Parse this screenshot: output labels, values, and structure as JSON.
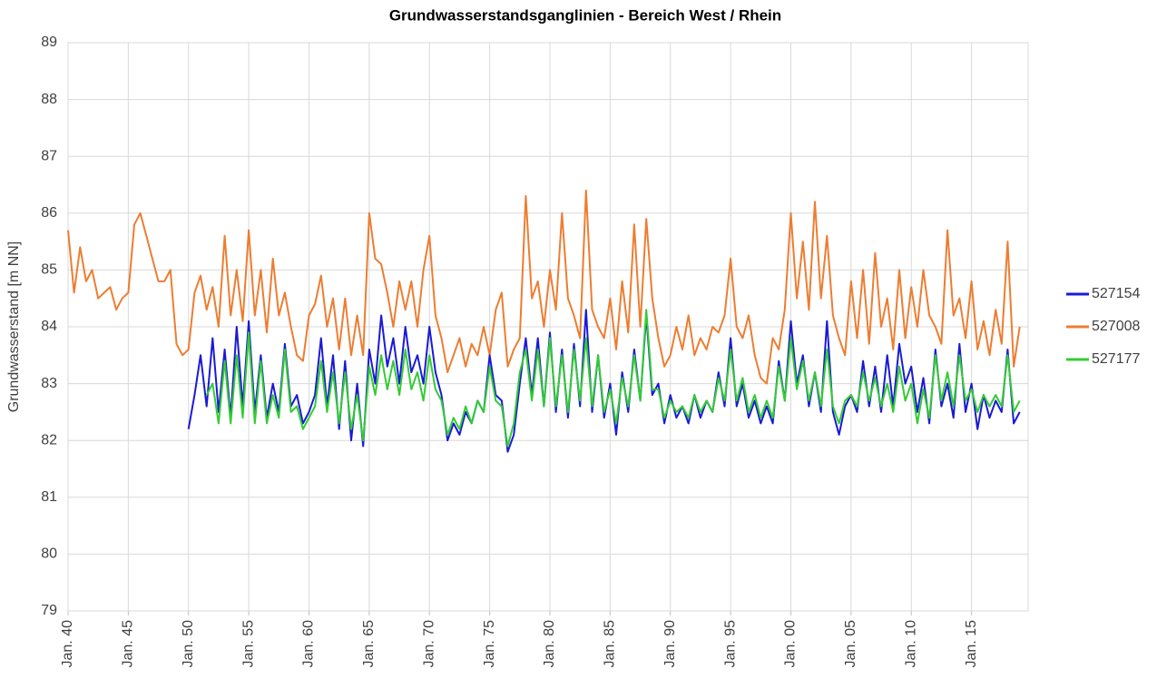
{
  "chart_data": {
    "type": "line",
    "title": "Grundwasserstandsganglinien  - Bereich West / Rhein",
    "y_label": "Grundwasserstand [m NN]",
    "x": [
      1940,
      1940.5,
      1941,
      1941.5,
      1942,
      1942.5,
      1943,
      1943.5,
      1944,
      1944.5,
      1945,
      1945.5,
      1946,
      1946.5,
      1947,
      1947.5,
      1948,
      1948.5,
      1949,
      1949.5,
      1950,
      1950.5,
      1951,
      1951.5,
      1952,
      1952.5,
      1953,
      1953.5,
      1954,
      1954.5,
      1955,
      1955.5,
      1956,
      1956.5,
      1957,
      1957.5,
      1958,
      1958.5,
      1959,
      1959.5,
      1960,
      1960.5,
      1961,
      1961.5,
      1962,
      1962.5,
      1963,
      1963.5,
      1964,
      1964.5,
      1965,
      1965.5,
      1966,
      1966.5,
      1967,
      1967.5,
      1968,
      1968.5,
      1969,
      1969.5,
      1970,
      1970.5,
      1971,
      1971.5,
      1972,
      1972.5,
      1973,
      1973.5,
      1974,
      1974.5,
      1975,
      1975.5,
      1976,
      1976.5,
      1977,
      1977.5,
      1978,
      1978.5,
      1979,
      1979.5,
      1980,
      1980.5,
      1981,
      1981.5,
      1982,
      1982.5,
      1983,
      1983.5,
      1984,
      1984.5,
      1985,
      1985.5,
      1986,
      1986.5,
      1987,
      1987.5,
      1988,
      1988.5,
      1989,
      1989.5,
      1990,
      1990.5,
      1991,
      1991.5,
      1992,
      1992.5,
      1993,
      1993.5,
      1994,
      1994.5,
      1995,
      1995.5,
      1996,
      1996.5,
      1997,
      1997.5,
      1998,
      1998.5,
      1999,
      1999.5,
      2000,
      2000.5,
      2001,
      2001.5,
      2002,
      2002.5,
      2003,
      2003.5,
      2004,
      2004.5,
      2005,
      2005.5,
      2006,
      2006.5,
      2007,
      2007.5,
      2008,
      2008.5,
      2009,
      2009.5,
      2010,
      2010.5,
      2011,
      2011.5,
      2012,
      2012.5,
      2013,
      2013.5,
      2014,
      2014.5,
      2015,
      2015.5,
      2016,
      2016.5,
      2017,
      2017.5,
      2018,
      2018.5,
      2019
    ],
    "series": [
      {
        "name": "527154",
        "color": "#1a1ad6",
        "values": [
          null,
          null,
          null,
          null,
          null,
          null,
          null,
          null,
          null,
          null,
          null,
          null,
          null,
          null,
          null,
          null,
          null,
          null,
          null,
          null,
          82.2,
          82.8,
          83.5,
          82.6,
          83.8,
          82.5,
          83.6,
          82.4,
          84.0,
          82.6,
          84.1,
          82.5,
          83.5,
          82.4,
          83.0,
          82.5,
          83.7,
          82.6,
          82.8,
          82.3,
          82.5,
          82.8,
          83.8,
          82.6,
          83.5,
          82.2,
          83.4,
          82.0,
          83.0,
          81.9,
          83.6,
          83.0,
          84.2,
          83.3,
          83.8,
          83.0,
          84.0,
          83.2,
          83.5,
          83.0,
          84.0,
          83.2,
          82.8,
          82.0,
          82.3,
          82.1,
          82.5,
          82.3,
          82.7,
          82.5,
          83.5,
          82.8,
          82.7,
          81.8,
          82.1,
          83.0,
          83.8,
          82.8,
          83.8,
          82.6,
          83.9,
          82.5,
          83.6,
          82.4,
          83.7,
          82.6,
          84.3,
          82.5,
          83.5,
          82.4,
          83.0,
          82.1,
          83.2,
          82.5,
          83.6,
          82.7,
          84.2,
          82.8,
          83.0,
          82.3,
          82.8,
          82.4,
          82.6,
          82.3,
          82.8,
          82.4,
          82.7,
          82.5,
          83.2,
          82.6,
          83.8,
          82.6,
          83.0,
          82.4,
          82.7,
          82.3,
          82.6,
          82.3,
          83.4,
          82.7,
          84.1,
          83.0,
          83.5,
          82.6,
          83.2,
          82.5,
          84.1,
          82.5,
          82.1,
          82.6,
          82.8,
          82.5,
          83.4,
          82.6,
          83.3,
          82.5,
          83.5,
          82.6,
          83.7,
          83.0,
          83.3,
          82.5,
          83.1,
          82.3,
          83.6,
          82.6,
          83.0,
          82.4,
          83.7,
          82.5,
          83.0,
          82.2,
          82.8,
          82.4,
          82.7,
          82.5,
          83.6,
          82.3,
          82.5
        ]
      },
      {
        "name": "527008",
        "color": "#ed7d31",
        "values": [
          85.7,
          84.6,
          85.4,
          84.8,
          85.0,
          84.5,
          84.6,
          84.7,
          84.3,
          84.5,
          84.6,
          85.8,
          86.0,
          85.6,
          85.2,
          84.8,
          84.8,
          85.0,
          83.7,
          83.5,
          83.6,
          84.6,
          84.9,
          84.3,
          84.7,
          84.0,
          85.6,
          84.2,
          85.0,
          84.1,
          85.7,
          84.2,
          85.0,
          83.9,
          85.2,
          84.2,
          84.6,
          84.0,
          83.5,
          83.4,
          84.2,
          84.4,
          84.9,
          84.0,
          84.5,
          83.6,
          84.5,
          83.5,
          84.2,
          83.5,
          86.0,
          85.2,
          85.1,
          84.6,
          84.0,
          84.8,
          84.3,
          84.8,
          84.0,
          85.0,
          85.6,
          84.2,
          83.8,
          83.2,
          83.5,
          83.8,
          83.3,
          83.7,
          83.5,
          84.0,
          83.5,
          84.3,
          84.6,
          83.3,
          83.6,
          83.8,
          86.3,
          84.5,
          84.8,
          84.0,
          85.0,
          84.3,
          86.0,
          84.5,
          84.2,
          83.8,
          86.4,
          84.3,
          84.0,
          83.8,
          84.5,
          83.6,
          84.8,
          83.9,
          85.8,
          84.0,
          85.9,
          84.5,
          83.8,
          83.3,
          83.5,
          84.0,
          83.6,
          84.2,
          83.5,
          83.8,
          83.6,
          84.0,
          83.9,
          84.2,
          85.2,
          84.0,
          83.8,
          84.2,
          83.5,
          83.1,
          83.0,
          83.8,
          83.6,
          84.3,
          86.0,
          84.5,
          85.5,
          84.3,
          86.2,
          84.5,
          85.6,
          84.2,
          83.8,
          83.5,
          84.8,
          83.8,
          85.0,
          83.7,
          85.3,
          84.0,
          84.5,
          83.6,
          85.0,
          83.8,
          84.7,
          84.0,
          85.0,
          84.2,
          84.0,
          83.7,
          85.7,
          84.2,
          84.5,
          83.8,
          84.8,
          83.6,
          84.1,
          83.5,
          84.3,
          83.7,
          85.5,
          83.3,
          84.0
        ]
      },
      {
        "name": "527177",
        "color": "#33cc33",
        "values": [
          null,
          null,
          null,
          null,
          null,
          null,
          null,
          null,
          null,
          null,
          null,
          null,
          null,
          null,
          null,
          null,
          null,
          null,
          null,
          null,
          null,
          null,
          null,
          82.8,
          83.0,
          82.3,
          83.4,
          82.3,
          83.5,
          82.4,
          83.9,
          82.3,
          83.4,
          82.3,
          82.8,
          82.4,
          83.6,
          82.5,
          82.6,
          82.2,
          82.4,
          82.6,
          83.4,
          82.5,
          83.2,
          82.3,
          83.2,
          82.2,
          82.8,
          82.0,
          83.3,
          82.8,
          83.5,
          82.9,
          83.4,
          82.8,
          83.6,
          82.9,
          83.2,
          82.7,
          83.5,
          82.9,
          82.7,
          82.1,
          82.4,
          82.2,
          82.6,
          82.3,
          82.7,
          82.5,
          83.3,
          82.7,
          82.6,
          81.9,
          82.3,
          83.2,
          83.6,
          82.7,
          83.6,
          82.6,
          83.8,
          82.6,
          83.5,
          82.5,
          83.6,
          82.7,
          83.8,
          82.6,
          83.5,
          82.5,
          82.9,
          82.3,
          83.1,
          82.6,
          83.5,
          82.7,
          84.3,
          82.9,
          82.9,
          82.4,
          82.7,
          82.5,
          82.6,
          82.4,
          82.8,
          82.5,
          82.7,
          82.5,
          83.1,
          82.7,
          83.6,
          82.7,
          83.1,
          82.5,
          82.8,
          82.4,
          82.7,
          82.4,
          83.3,
          82.7,
          83.8,
          82.9,
          83.4,
          82.7,
          83.2,
          82.6,
          83.6,
          82.6,
          82.3,
          82.7,
          82.8,
          82.6,
          83.2,
          82.7,
          83.1,
          82.6,
          83.0,
          82.5,
          83.3,
          82.7,
          83.0,
          82.3,
          82.9,
          82.4,
          83.5,
          82.7,
          83.2,
          82.6,
          83.5,
          82.7,
          82.9,
          82.5,
          82.8,
          82.6,
          82.8,
          82.6,
          83.5,
          82.5,
          82.7
        ]
      }
    ],
    "xlim": [
      1940,
      2019.7
    ],
    "xticks": [
      {
        "value": 1940,
        "label": "Jan. 40"
      },
      {
        "value": 1945,
        "label": "Jan. 45"
      },
      {
        "value": 1950,
        "label": "Jan. 50"
      },
      {
        "value": 1955,
        "label": "Jan. 55"
      },
      {
        "value": 1960,
        "label": "Jan. 60"
      },
      {
        "value": 1965,
        "label": "Jan. 65"
      },
      {
        "value": 1970,
        "label": "Jan. 70"
      },
      {
        "value": 1975,
        "label": "Jan. 75"
      },
      {
        "value": 1980,
        "label": "Jan. 80"
      },
      {
        "value": 1985,
        "label": "Jan. 85"
      },
      {
        "value": 1990,
        "label": "Jan. 90"
      },
      {
        "value": 1995,
        "label": "Jan. 95"
      },
      {
        "value": 2000,
        "label": "Jan. 00"
      },
      {
        "value": 2005,
        "label": "Jan. 05"
      },
      {
        "value": 2010,
        "label": "Jan. 10"
      },
      {
        "value": 2015,
        "label": "Jan. 15"
      }
    ],
    "ylim": [
      79,
      89
    ],
    "yticks": [
      79,
      80,
      81,
      82,
      83,
      84,
      85,
      86,
      87,
      88,
      89
    ],
    "grid": true,
    "legend": "right"
  }
}
